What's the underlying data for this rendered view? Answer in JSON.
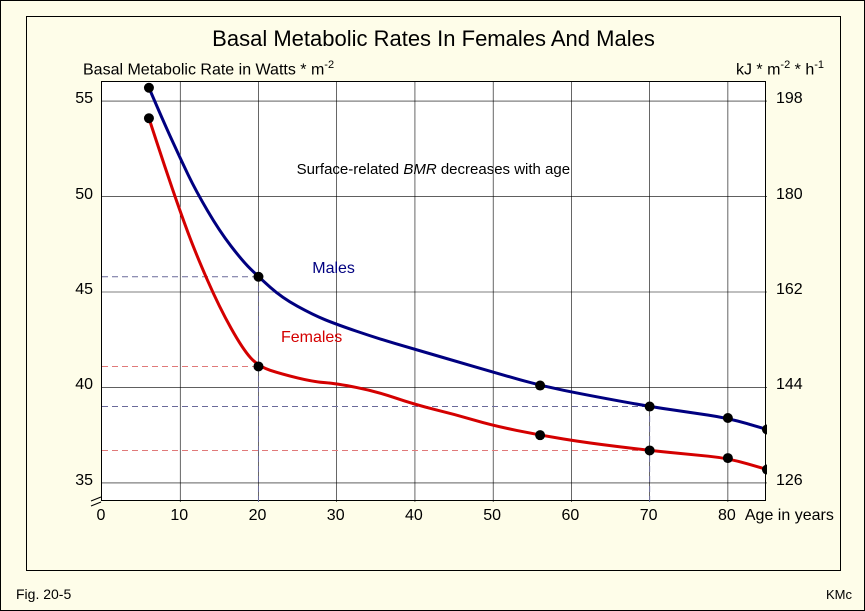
{
  "chart": {
    "type": "line",
    "title": "Basal Metabolic Rates In Females And Males",
    "y_left_label_html": "Basal Metabolic Rate in Watts * m<sup>-2</sup>",
    "y_right_label_html": "kJ * m<sup>-2</sup> * h<sup>-1</sup>",
    "x_label": "Age in years",
    "annotation_html": "Surface-related <i>BMR</i> decreases with age",
    "background_color": "#fefde9",
    "plot_background": "#ffffff",
    "grid_color": "#000000",
    "xlim": [
      0,
      85
    ],
    "ylim": [
      34,
      56
    ],
    "xticks": [
      0,
      10,
      20,
      30,
      40,
      50,
      60,
      70,
      80
    ],
    "yticks_left": [
      35,
      40,
      45,
      50,
      55
    ],
    "yticks_right": [
      126,
      144,
      162,
      180,
      198
    ],
    "title_fontsize": 22,
    "label_fontsize": 16,
    "series": {
      "males": {
        "label": "Males",
        "color": "#000080",
        "line_width": 3,
        "marker_color": "#000000",
        "marker_size": 5,
        "points_x": [
          6,
          20,
          56,
          70,
          80,
          85
        ],
        "points_y": [
          55.7,
          45.8,
          40.1,
          39.0,
          38.4,
          37.8
        ],
        "curve_x": [
          6,
          8,
          10,
          12,
          15,
          18,
          20,
          23,
          27,
          30,
          35,
          40,
          45,
          50,
          56,
          62,
          70,
          75,
          80,
          85
        ],
        "curve_y": [
          55.7,
          53.8,
          52.0,
          50.3,
          48.2,
          46.6,
          45.8,
          44.7,
          43.8,
          43.3,
          42.6,
          42.0,
          41.4,
          40.8,
          40.1,
          39.6,
          39.0,
          38.7,
          38.4,
          37.8
        ]
      },
      "females": {
        "label": "Females",
        "color": "#d40000",
        "line_width": 3,
        "marker_color": "#000000",
        "marker_size": 5,
        "points_x": [
          6,
          20,
          56,
          70,
          80,
          85
        ],
        "points_y": [
          54.1,
          41.1,
          37.5,
          36.7,
          36.3,
          35.7
        ],
        "curve_x": [
          6,
          8,
          10,
          12,
          15,
          18,
          20,
          23,
          27,
          30,
          35,
          40,
          45,
          50,
          56,
          62,
          70,
          75,
          80,
          85
        ],
        "curve_y": [
          54.1,
          51.6,
          49.2,
          47.0,
          44.2,
          42.0,
          41.1,
          40.7,
          40.3,
          40.2,
          39.8,
          39.1,
          38.6,
          38.0,
          37.5,
          37.1,
          36.7,
          36.5,
          36.3,
          35.7
        ]
      }
    },
    "reference_lines": [
      {
        "style": "dash",
        "color": "#6a6a9a",
        "y": 45.8,
        "x_from": 0,
        "x_to": 20
      },
      {
        "style": "dash",
        "color": "#6a6a9a",
        "x": 20,
        "y_from": 34,
        "y_to": 45.8
      },
      {
        "style": "dash",
        "color": "#6a6a9a",
        "y": 39.0,
        "x_from": 0,
        "x_to": 70
      },
      {
        "style": "dash",
        "color": "#6a6a9a",
        "x": 70,
        "y_from": 34,
        "y_to": 39.0
      },
      {
        "style": "dash",
        "color": "#e07a7a",
        "y": 41.1,
        "x_from": 0,
        "x_to": 20
      },
      {
        "style": "dash",
        "color": "#e07a7a",
        "y": 36.7,
        "x_from": 0,
        "x_to": 70
      }
    ]
  },
  "fig_label": "Fig. 20-5",
  "attribution": "KMc"
}
